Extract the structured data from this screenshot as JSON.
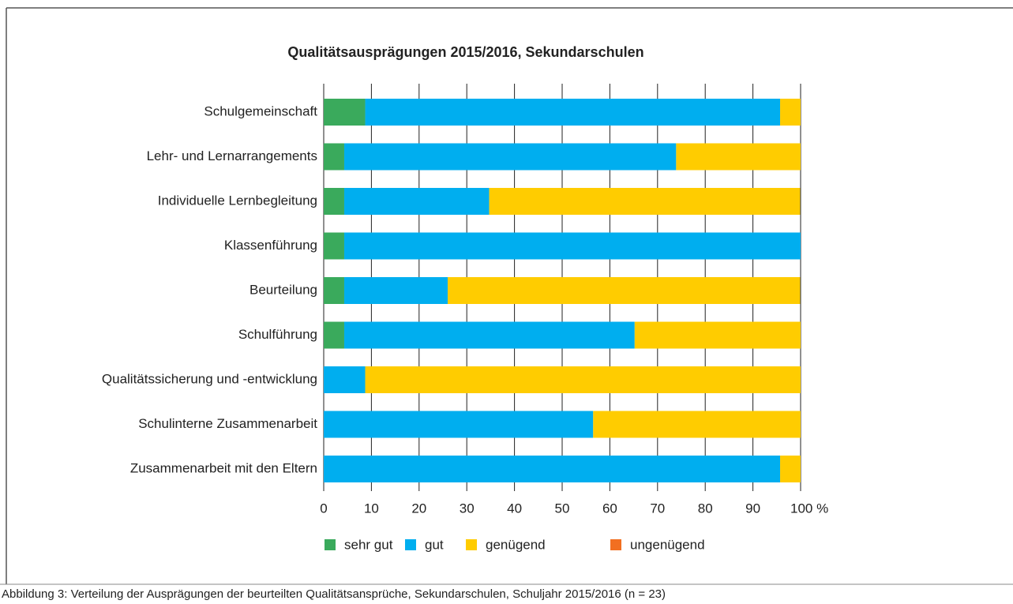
{
  "chart_data": {
    "type": "stacked-bar-horizontal",
    "title": "Qualitätsausprägungen 2015/2016, Sekundarschulen",
    "caption": "Abbildung 3: Verteilung der Ausprägungen der beurteilten Qualitätsansprüche, Sekundarschulen, Schuljahr 2015/2016 (n = 23)",
    "categories": [
      "Schulgemeinschaft",
      "Lehr- und Lernarrangements",
      "Individuelle Lernbegleitung",
      "Klassenführung",
      "Beurteilung",
      "Schulführung",
      "Qualitätssicherung und -entwicklung",
      "Schulinterne Zusammenarbeit",
      "Zusammenarbeit mit den Eltern"
    ],
    "series": [
      {
        "name": "sehr gut",
        "color": "#3aaa5c",
        "values": [
          8.7,
          4.3,
          4.3,
          4.3,
          4.3,
          4.3,
          0,
          0,
          0
        ]
      },
      {
        "name": "gut",
        "color": "#00aeef",
        "values": [
          87.0,
          69.6,
          30.4,
          95.7,
          21.7,
          60.9,
          8.7,
          56.5,
          95.7
        ]
      },
      {
        "name": "genügend",
        "color": "#ffcc00",
        "values": [
          4.3,
          26.1,
          65.2,
          0,
          73.9,
          34.8,
          91.3,
          43.5,
          4.3
        ]
      },
      {
        "name": "ungenügend",
        "color": "#f26f21",
        "values": [
          0,
          0,
          0,
          0,
          0,
          0,
          0,
          0,
          0
        ]
      }
    ],
    "xlim": [
      0,
      100
    ],
    "xticks": [
      0,
      10,
      20,
      30,
      40,
      50,
      60,
      70,
      80,
      90,
      {
        "value": 100,
        "label": "100 %"
      }
    ],
    "grid": true,
    "legend": "bottom"
  }
}
